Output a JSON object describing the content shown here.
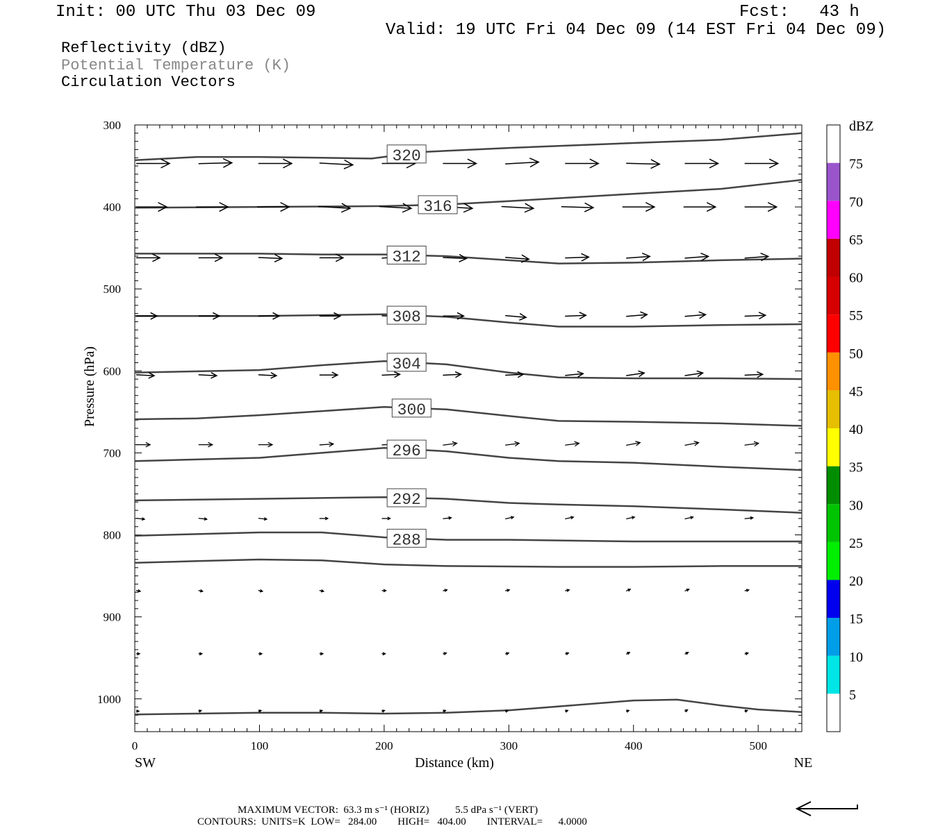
{
  "header": {
    "init": "Init: 00 UTC Thu 03 Dec 09",
    "fcst": "Fcst:   43 h",
    "valid": "Valid: 19 UTC Fri 04 Dec 09 (14 EST Fri 04 Dec 09)"
  },
  "legend": {
    "reflectivity": "Reflectivity (dBZ)",
    "theta": "Potential Temperature (K)",
    "vectors": "Circulation Vectors"
  },
  "footer": {
    "max_vector": "MAXIMUM VECTOR:  63.3 m s⁻¹ (HORIZ)          5.5 dPa s⁻¹ (VERT)",
    "contours": "CONTOURS:  UNITS=K  LOW=   284.00        HIGH=   404.00        INTERVAL=      4.0000"
  },
  "colorbar": {
    "title": "dBZ",
    "labels": [
      "5",
      "10",
      "15",
      "20",
      "25",
      "30",
      "35",
      "40",
      "45",
      "50",
      "55",
      "60",
      "65",
      "70",
      "75"
    ],
    "colors": [
      "#ffffff",
      "#00e5e5",
      "#009ee8",
      "#0000ee",
      "#00ee00",
      "#00c400",
      "#008e00",
      "#ffff00",
      "#e5bf00",
      "#ff9000",
      "#ff0000",
      "#d60000",
      "#c00000",
      "#ff00ff",
      "#9a55cc",
      "#ffffff"
    ]
  },
  "chart_data": {
    "type": "cross-section",
    "xlabel": "Distance (km)",
    "ylabel": "Pressure (hPa)",
    "xlim": [
      0,
      535
    ],
    "ylim": [
      1040,
      300
    ],
    "x_ticks": [
      "0",
      "100",
      "200",
      "300",
      "400",
      "500"
    ],
    "y_ticks": [
      "300",
      "400",
      "500",
      "600",
      "700",
      "800",
      "900",
      "1000"
    ],
    "x_end_labels": {
      "left": "SW",
      "right": "NE"
    },
    "isentropes": [
      {
        "label": "320",
        "label_x": 218,
        "points": [
          [
            0,
            343
          ],
          [
            50,
            339
          ],
          [
            100,
            339
          ],
          [
            150,
            340
          ],
          [
            190,
            341
          ],
          [
            230,
            333
          ],
          [
            300,
            328
          ],
          [
            400,
            322
          ],
          [
            470,
            318
          ],
          [
            535,
            310
          ]
        ]
      },
      {
        "label": "316",
        "label_x": 243,
        "points": [
          [
            0,
            401
          ],
          [
            100,
            400
          ],
          [
            200,
            399
          ],
          [
            250,
            397
          ],
          [
            300,
            393
          ],
          [
            400,
            384
          ],
          [
            470,
            378
          ],
          [
            535,
            367
          ]
        ]
      },
      {
        "label": "312",
        "label_x": 218,
        "points": [
          [
            0,
            457
          ],
          [
            100,
            457
          ],
          [
            150,
            458
          ],
          [
            200,
            458
          ],
          [
            250,
            460
          ],
          [
            300,
            465
          ],
          [
            340,
            469
          ],
          [
            400,
            468
          ],
          [
            470,
            465
          ],
          [
            535,
            463
          ]
        ]
      },
      {
        "label": "308",
        "label_x": 218,
        "points": [
          [
            0,
            533
          ],
          [
            100,
            533
          ],
          [
            150,
            532
          ],
          [
            200,
            531
          ],
          [
            250,
            534
          ],
          [
            300,
            541
          ],
          [
            340,
            546
          ],
          [
            400,
            546
          ],
          [
            470,
            544
          ],
          [
            535,
            543
          ]
        ]
      },
      {
        "label": "304",
        "label_x": 218,
        "points": [
          [
            0,
            602
          ],
          [
            100,
            599
          ],
          [
            150,
            593
          ],
          [
            200,
            588
          ],
          [
            250,
            592
          ],
          [
            300,
            602
          ],
          [
            340,
            608
          ],
          [
            400,
            609
          ],
          [
            470,
            609
          ],
          [
            535,
            610
          ]
        ]
      },
      {
        "label": "300",
        "label_x": 222,
        "points": [
          [
            0,
            659
          ],
          [
            50,
            658
          ],
          [
            100,
            654
          ],
          [
            150,
            649
          ],
          [
            200,
            644
          ],
          [
            250,
            647
          ],
          [
            300,
            655
          ],
          [
            340,
            661
          ],
          [
            400,
            662
          ],
          [
            470,
            664
          ],
          [
            535,
            667
          ]
        ]
      },
      {
        "label": "296",
        "label_x": 218,
        "points": [
          [
            0,
            710
          ],
          [
            100,
            706
          ],
          [
            150,
            700
          ],
          [
            200,
            694
          ],
          [
            250,
            698
          ],
          [
            300,
            706
          ],
          [
            340,
            710
          ],
          [
            400,
            712
          ],
          [
            470,
            717
          ],
          [
            535,
            721
          ]
        ]
      },
      {
        "label": "292",
        "label_x": 218,
        "points": [
          [
            0,
            758
          ],
          [
            100,
            756
          ],
          [
            200,
            754
          ],
          [
            250,
            756
          ],
          [
            300,
            761
          ],
          [
            340,
            763
          ],
          [
            400,
            765
          ],
          [
            470,
            769
          ],
          [
            535,
            773
          ]
        ]
      },
      {
        "label": "288",
        "label_x": 218,
        "points": [
          [
            0,
            801
          ],
          [
            50,
            799
          ],
          [
            100,
            797
          ],
          [
            150,
            797
          ],
          [
            200,
            803
          ],
          [
            250,
            806
          ],
          [
            300,
            806
          ],
          [
            400,
            808
          ],
          [
            470,
            808
          ],
          [
            535,
            808
          ]
        ]
      },
      {
        "label": "",
        "label_x": null,
        "points": [
          [
            0,
            834
          ],
          [
            50,
            832
          ],
          [
            100,
            830
          ],
          [
            150,
            831
          ],
          [
            200,
            836
          ],
          [
            250,
            838
          ],
          [
            340,
            839
          ],
          [
            400,
            839
          ],
          [
            470,
            838
          ],
          [
            535,
            838
          ]
        ]
      },
      {
        "label": "",
        "label_x": null,
        "points": [
          [
            0,
            1019
          ],
          [
            100,
            1017
          ],
          [
            150,
            1017
          ],
          [
            200,
            1018
          ],
          [
            250,
            1017
          ],
          [
            300,
            1014
          ],
          [
            350,
            1008
          ],
          [
            400,
            1002
          ],
          [
            435,
            1001
          ],
          [
            470,
            1008
          ],
          [
            500,
            1013
          ],
          [
            535,
            1016
          ]
        ]
      }
    ],
    "vectors": [
      {
        "p": 347,
        "x0": 2,
        "dp": 2,
        "h": [
          [
            0,
            48
          ],
          [
            50,
            48
          ],
          [
            98,
            48
          ],
          [
            147,
            48
          ],
          [
            197,
            48
          ],
          [
            246,
            48
          ],
          [
            296,
            48
          ],
          [
            344,
            48
          ],
          [
            393,
            48
          ],
          [
            440,
            48
          ],
          [
            488,
            48
          ]
        ],
        "hv": [
          0,
          -1,
          0,
          2,
          0,
          0,
          -2,
          0,
          1,
          0,
          0
        ]
      },
      {
        "p": 400,
        "x0": 2,
        "h": [
          [
            0,
            44
          ],
          [
            48,
            46
          ],
          [
            97,
            46
          ],
          [
            146,
            46
          ],
          [
            195,
            46
          ],
          [
            244,
            46
          ],
          [
            293,
            46
          ],
          [
            341,
            46
          ],
          [
            390,
            46
          ],
          [
            439,
            46
          ],
          [
            488,
            46
          ]
        ],
        "hv": [
          0,
          0,
          0,
          2,
          2,
          2,
          2,
          1,
          0,
          0,
          0
        ]
      },
      {
        "p": 462,
        "x0": 2,
        "h": [
          [
            0,
            34
          ],
          [
            50,
            34
          ],
          [
            98,
            34
          ],
          [
            147,
            34
          ],
          [
            197,
            34
          ],
          [
            246,
            34
          ],
          [
            296,
            34
          ],
          [
            344,
            34
          ],
          [
            393,
            34
          ],
          [
            440,
            34
          ],
          [
            488,
            34
          ]
        ],
        "hv": [
          0,
          0,
          1,
          0,
          -2,
          1,
          2,
          -1,
          -2,
          -2,
          -2
        ]
      },
      {
        "p": 533,
        "x0": 2,
        "h": [
          [
            0,
            30
          ],
          [
            50,
            30
          ],
          [
            98,
            30
          ],
          [
            147,
            30
          ],
          [
            197,
            30
          ],
          [
            246,
            30
          ],
          [
            296,
            30
          ],
          [
            344,
            30
          ],
          [
            393,
            30
          ],
          [
            440,
            30
          ],
          [
            488,
            30
          ]
        ],
        "hv": [
          0,
          0,
          0,
          0,
          1,
          0,
          2,
          -1,
          -2,
          -2,
          -1
        ]
      },
      {
        "p": 605,
        "x0": 2,
        "h": [
          [
            0,
            26
          ],
          [
            50,
            26
          ],
          [
            98,
            26
          ],
          [
            147,
            26
          ],
          [
            197,
            26
          ],
          [
            246,
            26
          ],
          [
            296,
            26
          ],
          [
            344,
            26
          ],
          [
            393,
            26
          ],
          [
            440,
            26
          ],
          [
            488,
            26
          ]
        ],
        "hv": [
          1,
          1,
          1,
          0,
          -1,
          -1,
          -1,
          -2,
          -3,
          -3,
          -1
        ]
      },
      {
        "p": 690,
        "x0": 2,
        "h": [
          [
            0,
            20
          ],
          [
            50,
            20
          ],
          [
            98,
            20
          ],
          [
            147,
            20
          ],
          [
            197,
            20
          ],
          [
            246,
            20
          ],
          [
            296,
            20
          ],
          [
            344,
            20
          ],
          [
            393,
            20
          ],
          [
            440,
            20
          ],
          [
            488,
            20
          ]
        ],
        "hv": [
          0,
          0,
          0,
          -1,
          -1,
          -2,
          -2,
          -2,
          -3,
          -3,
          -2
        ]
      },
      {
        "p": 780,
        "x0": 2,
        "h": [
          [
            0,
            12
          ],
          [
            50,
            12
          ],
          [
            98,
            12
          ],
          [
            147,
            12
          ],
          [
            197,
            12
          ],
          [
            246,
            12
          ],
          [
            296,
            12
          ],
          [
            344,
            12
          ],
          [
            393,
            12
          ],
          [
            440,
            12
          ],
          [
            488,
            12
          ]
        ],
        "hv": [
          1,
          1,
          1,
          0,
          0,
          -1,
          -2,
          -2,
          -2,
          -2,
          -1
        ]
      },
      {
        "p": 868,
        "x0": 2,
        "h": [
          [
            0,
            6
          ],
          [
            50,
            6
          ],
          [
            98,
            6
          ],
          [
            147,
            6
          ],
          [
            197,
            6
          ],
          [
            246,
            6
          ],
          [
            296,
            6
          ],
          [
            344,
            6
          ],
          [
            393,
            6
          ],
          [
            440,
            6
          ],
          [
            488,
            6
          ]
        ],
        "hv": [
          1,
          1,
          1,
          1,
          0,
          -1,
          -1,
          -1,
          -2,
          -2,
          -1
        ]
      },
      {
        "p": 945,
        "x0": 2,
        "h": [
          [
            0,
            5
          ],
          [
            50,
            5
          ],
          [
            98,
            5
          ],
          [
            147,
            5
          ],
          [
            197,
            5
          ],
          [
            246,
            5
          ],
          [
            296,
            5
          ],
          [
            344,
            5
          ],
          [
            393,
            5
          ],
          [
            440,
            5
          ],
          [
            488,
            5
          ]
        ],
        "hv": [
          0,
          0,
          0,
          0,
          0,
          -1,
          -1,
          -1,
          -2,
          -2,
          -1
        ]
      },
      {
        "p": 1015,
        "x0": 2,
        "h": [
          [
            0,
            4
          ],
          [
            50,
            4
          ],
          [
            98,
            4
          ],
          [
            147,
            4
          ],
          [
            197,
            4
          ],
          [
            246,
            4
          ],
          [
            296,
            4
          ],
          [
            344,
            4
          ],
          [
            393,
            4
          ],
          [
            440,
            4
          ],
          [
            488,
            4
          ]
        ],
        "hv": [
          0,
          -1,
          -1,
          -1,
          -1,
          -1,
          -1,
          -1,
          -1,
          -2,
          -1
        ]
      }
    ]
  }
}
